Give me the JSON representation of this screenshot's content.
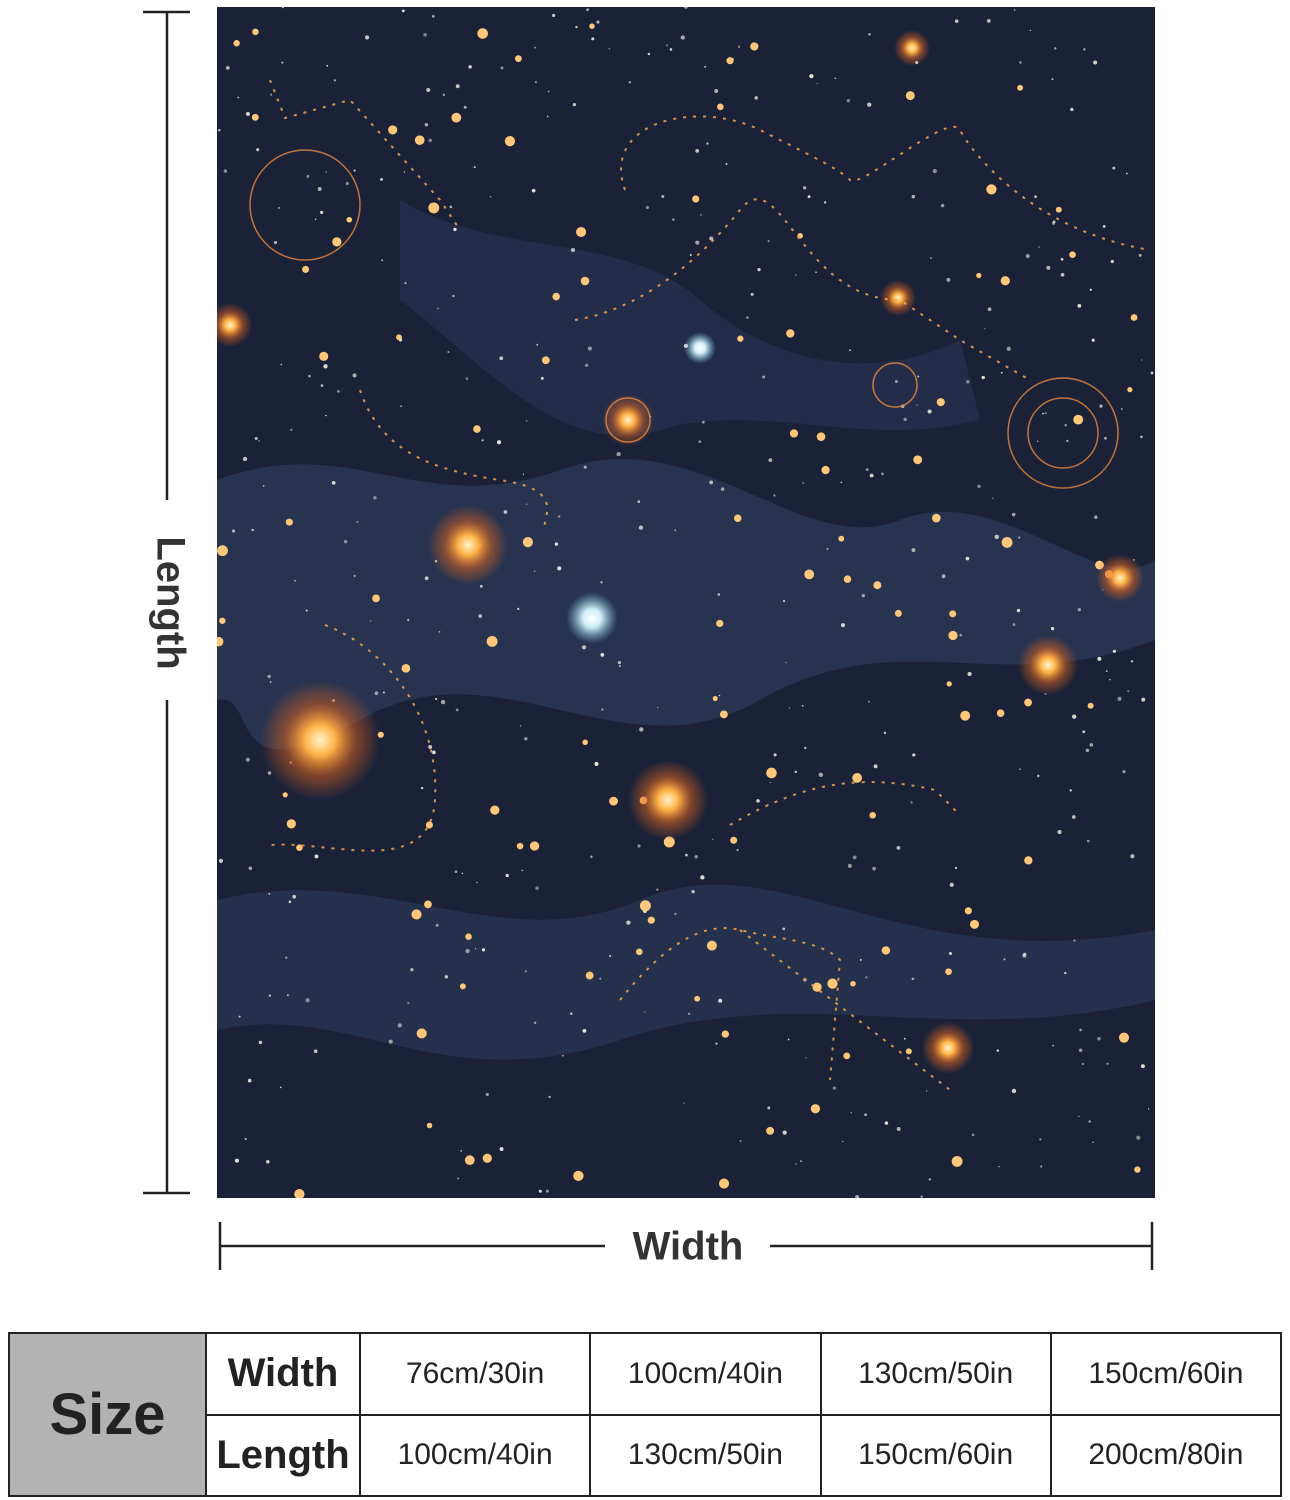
{
  "dimensions": {
    "length_label": "Length",
    "width_label": "Width"
  },
  "table": {
    "header": "Size",
    "rows": [
      {
        "label": "Width",
        "cells": [
          "76cm/30in",
          "100cm/40in",
          "130cm/50in",
          "150cm/60in"
        ]
      },
      {
        "label": "Length",
        "cells": [
          "100cm/40in",
          "130cm/50in",
          "150cm/60in",
          "200cm/80in"
        ]
      }
    ]
  }
}
